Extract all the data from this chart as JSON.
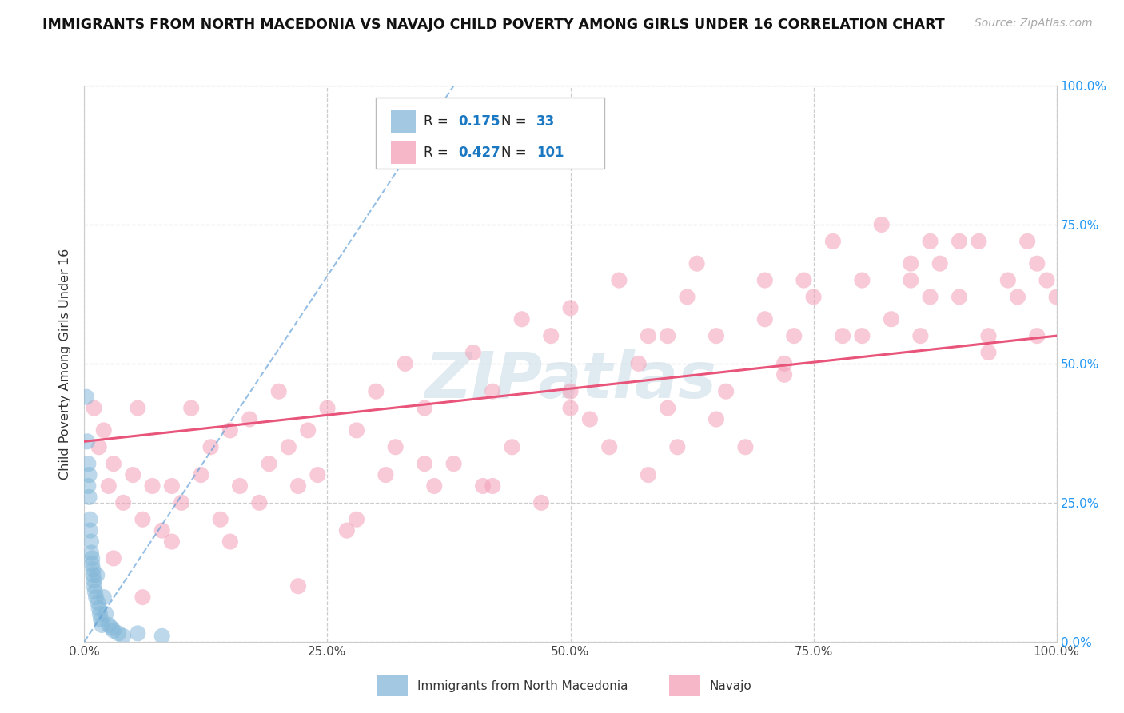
{
  "title": "IMMIGRANTS FROM NORTH MACEDONIA VS NAVAJO CHILD POVERTY AMONG GIRLS UNDER 16 CORRELATION CHART",
  "source": "Source: ZipAtlas.com",
  "ylabel": "Child Poverty Among Girls Under 16",
  "watermark": "ZIPatlas",
  "blue_R": 0.175,
  "blue_N": 33,
  "pink_R": 0.427,
  "pink_N": 101,
  "blue_color": "#85b8d9",
  "pink_color": "#f4a0b8",
  "blue_line_color": "#5b9bd5",
  "pink_line_color": "#e8547a",
  "legend_blue_label": "Immigrants from North Macedonia",
  "legend_pink_label": "Navajo",
  "xtick_labels": [
    "0.0%",
    "25.0%",
    "50.0%",
    "75.0%",
    "100.0%"
  ],
  "xtick_vals": [
    0,
    0.25,
    0.5,
    0.75,
    1.0
  ],
  "ytick_right_labels": [
    "0.0%",
    "25.0%",
    "50.0%",
    "75.0%",
    "100.0%"
  ],
  "ytick_vals": [
    0,
    0.25,
    0.5,
    0.75,
    1.0
  ],
  "blue_x": [
    0.002,
    0.003,
    0.004,
    0.004,
    0.005,
    0.005,
    0.006,
    0.006,
    0.007,
    0.007,
    0.008,
    0.008,
    0.009,
    0.009,
    0.01,
    0.01,
    0.011,
    0.012,
    0.013,
    0.014,
    0.015,
    0.016,
    0.017,
    0.018,
    0.02,
    0.022,
    0.025,
    0.028,
    0.03,
    0.035,
    0.04,
    0.055,
    0.08
  ],
  "blue_y": [
    0.44,
    0.36,
    0.32,
    0.28,
    0.3,
    0.26,
    0.22,
    0.2,
    0.18,
    0.16,
    0.15,
    0.14,
    0.13,
    0.12,
    0.11,
    0.1,
    0.09,
    0.08,
    0.12,
    0.07,
    0.06,
    0.05,
    0.04,
    0.03,
    0.08,
    0.05,
    0.03,
    0.025,
    0.02,
    0.015,
    0.01,
    0.015,
    0.01
  ],
  "pink_x": [
    0.01,
    0.015,
    0.02,
    0.025,
    0.03,
    0.04,
    0.05,
    0.055,
    0.06,
    0.07,
    0.08,
    0.09,
    0.1,
    0.11,
    0.12,
    0.13,
    0.14,
    0.15,
    0.16,
    0.17,
    0.18,
    0.19,
    0.2,
    0.21,
    0.22,
    0.23,
    0.24,
    0.25,
    0.27,
    0.28,
    0.3,
    0.31,
    0.32,
    0.33,
    0.35,
    0.36,
    0.38,
    0.4,
    0.41,
    0.42,
    0.44,
    0.45,
    0.47,
    0.48,
    0.5,
    0.52,
    0.54,
    0.55,
    0.57,
    0.58,
    0.6,
    0.61,
    0.62,
    0.63,
    0.65,
    0.66,
    0.68,
    0.7,
    0.72,
    0.73,
    0.74,
    0.75,
    0.77,
    0.78,
    0.8,
    0.82,
    0.83,
    0.85,
    0.86,
    0.87,
    0.88,
    0.9,
    0.92,
    0.93,
    0.95,
    0.96,
    0.97,
    0.98,
    0.99,
    1.0,
    0.03,
    0.06,
    0.09,
    0.15,
    0.22,
    0.28,
    0.35,
    0.42,
    0.5,
    0.58,
    0.65,
    0.72,
    0.8,
    0.87,
    0.93,
    0.98,
    0.5,
    0.6,
    0.7,
    0.85,
    0.9
  ],
  "pink_y": [
    0.42,
    0.35,
    0.38,
    0.28,
    0.32,
    0.25,
    0.3,
    0.42,
    0.22,
    0.28,
    0.2,
    0.18,
    0.25,
    0.42,
    0.3,
    0.35,
    0.22,
    0.38,
    0.28,
    0.4,
    0.25,
    0.32,
    0.45,
    0.35,
    0.28,
    0.38,
    0.3,
    0.42,
    0.2,
    0.38,
    0.45,
    0.3,
    0.35,
    0.5,
    0.42,
    0.28,
    0.32,
    0.52,
    0.28,
    0.45,
    0.35,
    0.58,
    0.25,
    0.55,
    0.42,
    0.4,
    0.35,
    0.65,
    0.5,
    0.55,
    0.42,
    0.35,
    0.62,
    0.68,
    0.55,
    0.45,
    0.35,
    0.58,
    0.48,
    0.55,
    0.65,
    0.62,
    0.72,
    0.55,
    0.65,
    0.75,
    0.58,
    0.65,
    0.55,
    0.72,
    0.68,
    0.62,
    0.72,
    0.55,
    0.65,
    0.62,
    0.72,
    0.55,
    0.65,
    0.62,
    0.15,
    0.08,
    0.28,
    0.18,
    0.1,
    0.22,
    0.32,
    0.28,
    0.45,
    0.3,
    0.4,
    0.5,
    0.55,
    0.62,
    0.52,
    0.68,
    0.6,
    0.55,
    0.65,
    0.68,
    0.72
  ],
  "pink_line_start_y": 0.36,
  "pink_line_end_y": 0.55,
  "blue_line_start_x": 0.0,
  "blue_line_start_y": 0.0,
  "blue_line_end_x": 0.38,
  "blue_line_end_y": 1.0
}
